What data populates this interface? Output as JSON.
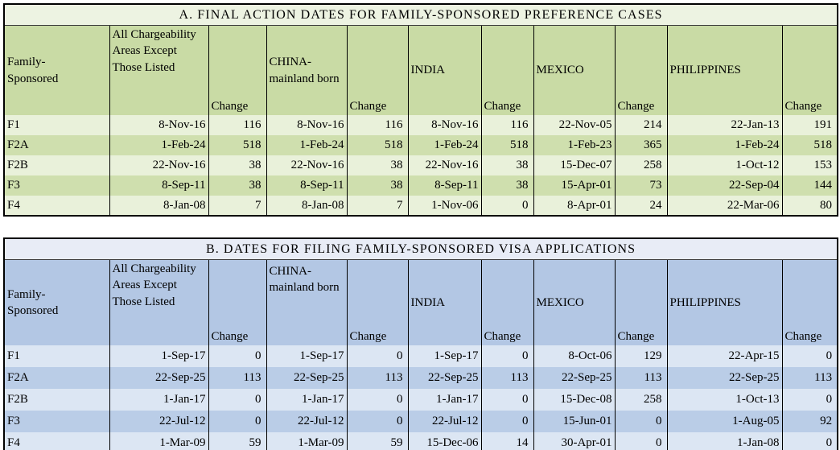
{
  "page": {
    "background": "#ffffff",
    "border_color": "#000000",
    "text_color": "#000000"
  },
  "tables": [
    {
      "id": "A",
      "title": "A. FINAL ACTION DATES FOR FAMILY-SPONSORED PREFERENCE CASES",
      "columns": [
        "Family-Sponsored",
        "All Chargeability Areas Except Those Listed",
        "Change",
        "CHINA-mainland born",
        "Change",
        "INDIA",
        "Change",
        "MEXICO",
        "Change",
        "PHILIPPINES",
        "Change"
      ],
      "rows": [
        [
          "F1",
          "8-Nov-16",
          "116",
          "8-Nov-16",
          "116",
          "8-Nov-16",
          "116",
          "22-Nov-05",
          "214",
          "22-Jan-13",
          "191"
        ],
        [
          "F2A",
          "1-Feb-24",
          "518",
          "1-Feb-24",
          "518",
          "1-Feb-24",
          "518",
          "1-Feb-23",
          "365",
          "1-Feb-24",
          "518"
        ],
        [
          "F2B",
          "22-Nov-16",
          "38",
          "22-Nov-16",
          "38",
          "22-Nov-16",
          "38",
          "15-Dec-07",
          "258",
          "1-Oct-12",
          "153"
        ],
        [
          "F3",
          "8-Sep-11",
          "38",
          "8-Sep-11",
          "38",
          "8-Sep-11",
          "38",
          "15-Apr-01",
          "73",
          "22-Sep-04",
          "144"
        ],
        [
          "F4",
          "8-Jan-08",
          "7",
          "8-Jan-08",
          "7",
          "1-Nov-06",
          "0",
          "8-Apr-01",
          "24",
          "22-Mar-06",
          "80"
        ]
      ],
      "colors": {
        "title_bg": "#edf3e2",
        "header_bg": "#c9dba5",
        "row_light": "#e9f1da",
        "row_dark": "#cfdfae"
      }
    },
    {
      "id": "B",
      "title": "B. DATES FOR FILING FAMILY-SPONSORED VISA APPLICATIONS",
      "columns": [
        "Family-Sponsored",
        "All Chargeability Areas Except Those Listed",
        "Change",
        "CHINA-mainland born",
        "Change",
        "INDIA",
        "Change",
        "MEXICO",
        "Change",
        "PHILIPPINES",
        "Change"
      ],
      "rows": [
        [
          "F1",
          "1-Sep-17",
          "0",
          "1-Sep-17",
          "0",
          "1-Sep-17",
          "0",
          "8-Oct-06",
          "129",
          "22-Apr-15",
          "0"
        ],
        [
          "F2A",
          "22-Sep-25",
          "113",
          "22-Sep-25",
          "113",
          "22-Sep-25",
          "113",
          "22-Sep-25",
          "113",
          "22-Sep-25",
          "113"
        ],
        [
          "F2B",
          "1-Jan-17",
          "0",
          "1-Jan-17",
          "0",
          "1-Jan-17",
          "0",
          "15-Dec-08",
          "258",
          "1-Oct-13",
          "0"
        ],
        [
          "F3",
          "22-Jul-12",
          "0",
          "22-Jul-12",
          "0",
          "22-Jul-12",
          "0",
          "15-Jun-01",
          "0",
          "1-Aug-05",
          "92"
        ],
        [
          "F4",
          "1-Mar-09",
          "59",
          "1-Mar-09",
          "59",
          "15-Dec-06",
          "14",
          "30-Apr-01",
          "0",
          "1-Jan-08",
          "0"
        ]
      ],
      "colors": {
        "title_bg": "#e8ecf6",
        "header_bg": "#b3c7e4",
        "row_light": "#dce6f3",
        "row_dark": "#bacde7"
      }
    }
  ]
}
